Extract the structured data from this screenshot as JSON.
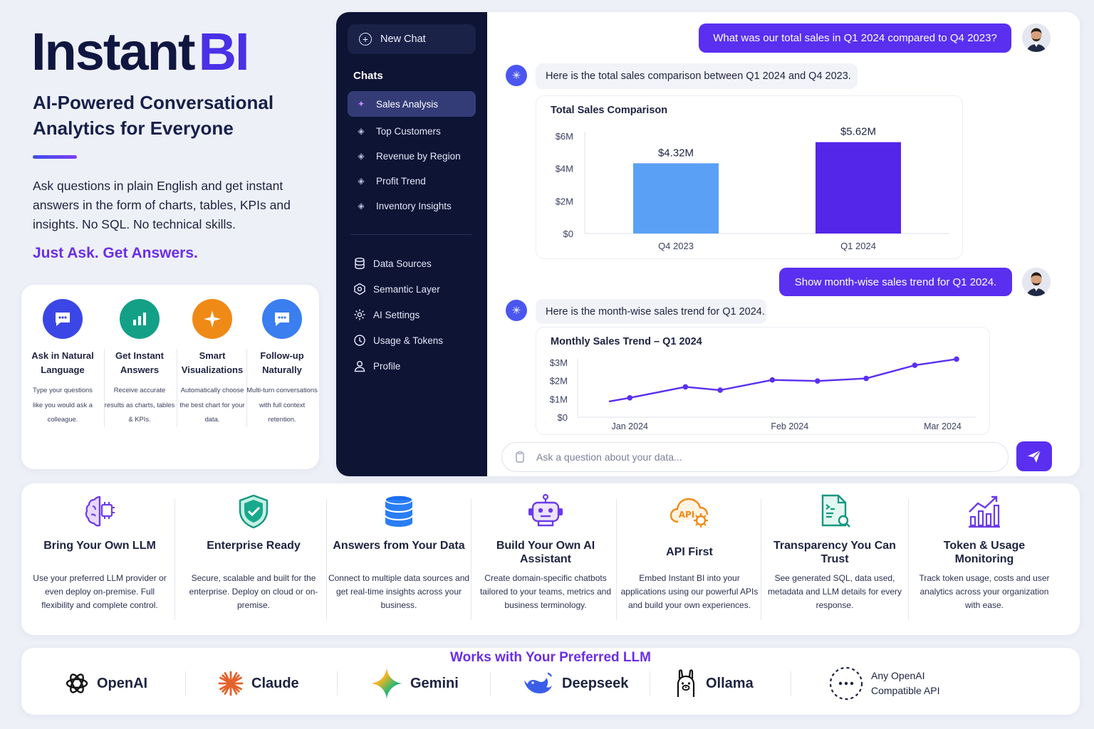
{
  "hero": {
    "title_main": "Instant",
    "title_accent": "BI",
    "subtitle": "AI-Powered Conversational Analytics for Everyone",
    "intro": "Ask questions in plain English and get instant answers in the form of charts, tables, KPIs and insights. No SQL. No technical skills.",
    "tagline": "Just Ask. Get Answers."
  },
  "features_small": [
    {
      "icon": "chat-bubble-icon",
      "color": "#3b46e6",
      "title": "Ask in Natural Language",
      "desc": "Type your questions like you would ask a colleague."
    },
    {
      "icon": "bar-chart-icon",
      "color": "#14a087",
      "title": "Get Instant Answers",
      "desc": "Receive accurate results as charts, tables & KPIs."
    },
    {
      "icon": "sparkle-icon",
      "color": "#f08a16",
      "title": "Smart Visualizations",
      "desc": "Automatically choose the best chart for your data."
    },
    {
      "icon": "chat-dots-icon",
      "color": "#3a7ef0",
      "title": "Follow-up Naturally",
      "desc": "Multi-turn conversations with full context retention."
    }
  ],
  "sidebar": {
    "new_chat": "New Chat",
    "chats_heading": "Chats",
    "chats": [
      {
        "label": "Sales Analysis",
        "active": true
      },
      {
        "label": "Top Customers",
        "active": false
      },
      {
        "label": "Revenue by Region",
        "active": false
      },
      {
        "label": "Profit Trend",
        "active": false
      },
      {
        "label": "Inventory Insights",
        "active": false
      }
    ],
    "menu": [
      {
        "label": "Data Sources",
        "icon": "database-icon"
      },
      {
        "label": "Semantic Layer",
        "icon": "layers-icon"
      },
      {
        "label": "AI Settings",
        "icon": "gear-icon"
      },
      {
        "label": "Usage & Tokens",
        "icon": "clock-icon"
      },
      {
        "label": "Profile",
        "icon": "user-icon"
      }
    ]
  },
  "conversation": {
    "q1": "What was our total sales in Q1 2024 compared to Q4 2023?",
    "a1": "Here is the total sales comparison between Q1 2024 and Q4 2023.",
    "q2": "Show month-wise sales trend for Q1 2024.",
    "a2": "Here is the month-wise sales trend for Q1 2024.",
    "input_placeholder": "Ask a question about your data..."
  },
  "chart_data": [
    {
      "type": "bar",
      "title": "Total Sales Comparison",
      "categories": [
        "Q4 2023",
        "Q1 2024"
      ],
      "values": [
        4.32,
        5.62
      ],
      "data_labels": [
        "$4.32M",
        "$5.62M"
      ],
      "yticks": [
        "$0",
        "$2M",
        "$4M",
        "$6M"
      ],
      "ylim": [
        0,
        6
      ],
      "colors": [
        "#5aa0f5",
        "#5326ea"
      ],
      "grid": false
    },
    {
      "type": "line",
      "title": "Monthly Sales Trend – Q1 2024",
      "x": [
        0,
        0.3,
        1.1,
        1.6,
        2.35,
        3.0,
        3.7,
        4.4,
        5.0
      ],
      "values": [
        0.86,
        1.06,
        1.66,
        1.48,
        2.04,
        1.98,
        2.12,
        2.84,
        3.18
      ],
      "xticks": [
        "Jan 2024",
        "Feb 2024",
        "Mar 2024"
      ],
      "xtick_positions": [
        0.3,
        2.6,
        4.8
      ],
      "yticks": [
        "$0",
        "$1M",
        "$2M",
        "$3M"
      ],
      "ylim": [
        0,
        3
      ],
      "xlim": [
        0,
        5
      ],
      "color": "#5a2ff0",
      "grid": false
    }
  ],
  "features": [
    {
      "icon": "brain-chip-icon",
      "title": "Bring Your Own LLM",
      "desc": "Use your preferred LLM provider or even deploy on-premise. Full flexibility and complete control."
    },
    {
      "icon": "shield-check-icon",
      "title": "Enterprise Ready",
      "desc": "Secure, scalable and built for the enterprise. Deploy on cloud or on-premise."
    },
    {
      "icon": "database-icon",
      "title": "Answers from Your Data",
      "desc": "Connect to multiple data sources and get real-time insights across your business."
    },
    {
      "icon": "robot-icon",
      "title": "Build Your Own AI Assistant",
      "desc": "Create domain-specific chatbots tailored to your teams, metrics and business terminology."
    },
    {
      "icon": "api-cloud-icon",
      "title": "API First",
      "desc": "Embed Instant BI into your applications using our powerful APIs and build your own experiences."
    },
    {
      "icon": "document-search-icon",
      "title": "Transparency You Can Trust",
      "desc": "See generated SQL, data used, metadata and LLM details for every response."
    },
    {
      "icon": "growth-chart-icon",
      "title": "Token & Usage Monitoring",
      "desc": "Track token usage, costs and user analytics across your organization with ease."
    }
  ],
  "llm": {
    "heading": "Works with Your Preferred LLM",
    "providers": [
      {
        "name": "OpenAI",
        "icon": "openai-icon"
      },
      {
        "name": "Claude",
        "icon": "claude-icon"
      },
      {
        "name": "Gemini",
        "icon": "gemini-icon"
      },
      {
        "name": "Deepseek",
        "icon": "deepseek-icon"
      },
      {
        "name": "Ollama",
        "icon": "ollama-icon"
      }
    ],
    "any_line1": "Any OpenAI",
    "any_line2": "Compatible API"
  }
}
